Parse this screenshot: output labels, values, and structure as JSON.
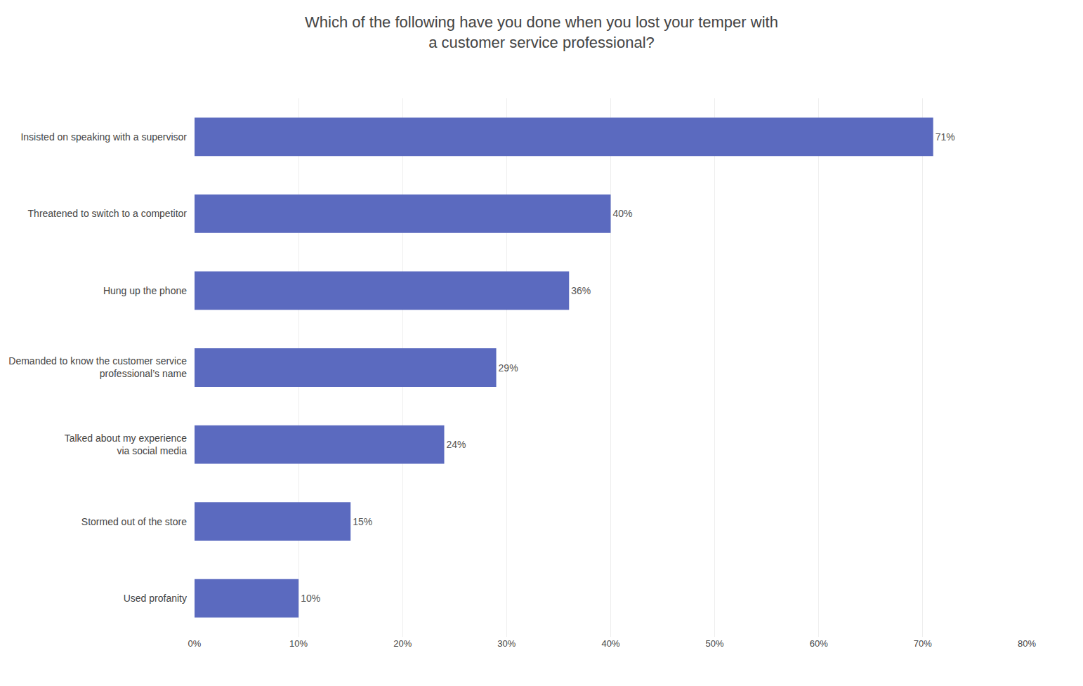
{
  "chart_data": {
    "type": "bar",
    "orientation": "horizontal",
    "title": "Which of the following have you done when you lost your temper with\na customer service professional?",
    "categories": [
      "Insisted on speaking with a supervisor",
      "Threatened to switch to a competitor",
      "Hung up the phone",
      "Demanded to know the customer service\nprofessional’s name",
      "Talked about my experience\nvia social media",
      "Stormed out of the store",
      "Used profanity"
    ],
    "values": [
      71,
      40,
      36,
      29,
      24,
      15,
      10
    ],
    "value_labels": [
      "71%",
      "40%",
      "36%",
      "29%",
      "24%",
      "15%",
      "10%"
    ],
    "data_labels": true,
    "color": "#5b6abf",
    "xlim": [
      0,
      80
    ],
    "xticks": [
      {
        "value": 0,
        "label": "0%"
      },
      {
        "value": 10,
        "label": "10%"
      },
      {
        "value": 20,
        "label": "20%"
      },
      {
        "value": 30,
        "label": "30%"
      },
      {
        "value": 40,
        "label": "40%"
      },
      {
        "value": 50,
        "label": "50%"
      },
      {
        "value": 60,
        "label": "60%"
      },
      {
        "value": 70,
        "label": "70%"
      },
      {
        "value": 80,
        "label": "80%"
      }
    ],
    "grid": true
  }
}
